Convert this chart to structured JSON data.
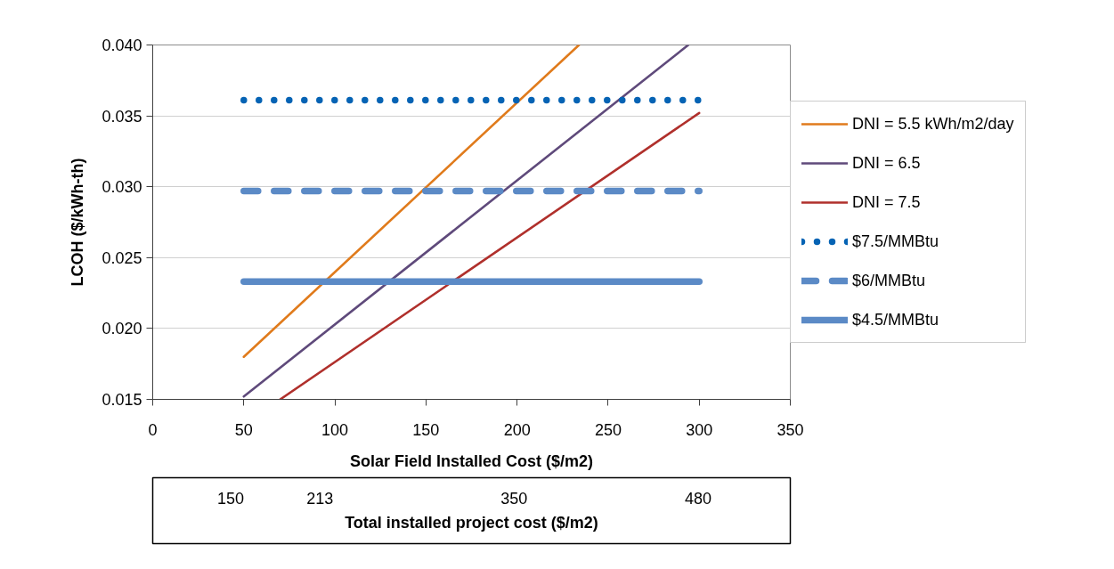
{
  "chart_data": {
    "type": "line",
    "xlabel": "Solar Field Installed Cost ($/m2)",
    "ylabel": "LCOH ($/kWh-th)",
    "x2label": "Total installed project cost ($/m2)",
    "xlim": [
      0,
      350
    ],
    "xticks": [
      0,
      50,
      100,
      150,
      200,
      250,
      300,
      350
    ],
    "ylim": [
      0.015,
      0.04
    ],
    "yticks": [
      {
        "value": 0.015,
        "label": "0.015"
      },
      {
        "value": 0.02,
        "label": "0.020"
      },
      {
        "value": 0.025,
        "label": "0.025"
      },
      {
        "value": 0.03,
        "label": "0.030"
      },
      {
        "value": 0.035,
        "label": "0.035"
      },
      {
        "value": 0.04,
        "label": "0.040"
      }
    ],
    "x2lim": [
      95,
      545
    ],
    "x2ticks": [
      150,
      213,
      350,
      480
    ],
    "grid": "y",
    "legend": "right",
    "series": [
      {
        "name": "DNI = 5.5 kWh/m2/day",
        "color": "#e07b1c",
        "x": [
          50,
          234
        ],
        "values": [
          0.018,
          0.04
        ]
      },
      {
        "name": "DNI = 6.5",
        "color": "#5f4a7b",
        "x": [
          50,
          294
        ],
        "values": [
          0.0152,
          0.04
        ]
      },
      {
        "name": "DNI = 7.5",
        "color": "#b0302c",
        "x": [
          70,
          300
        ],
        "values": [
          0.015,
          0.0352
        ]
      },
      {
        "name": "$7.5/MMBtu",
        "color": "#0563b4",
        "x": [
          50,
          300
        ],
        "values": [
          0.0361,
          0.0361
        ],
        "line_style": "dotted"
      },
      {
        "name": "$6/MMBtu",
        "color": "#5b8ac6",
        "x": [
          50,
          300
        ],
        "values": [
          0.0297,
          0.0297
        ],
        "line_style": "dashed"
      },
      {
        "name": "$4.5/MMBtu",
        "color": "#5b8ac6",
        "x": [
          50,
          300
        ],
        "values": [
          0.0233,
          0.0233
        ],
        "line_style": "solid"
      }
    ]
  }
}
